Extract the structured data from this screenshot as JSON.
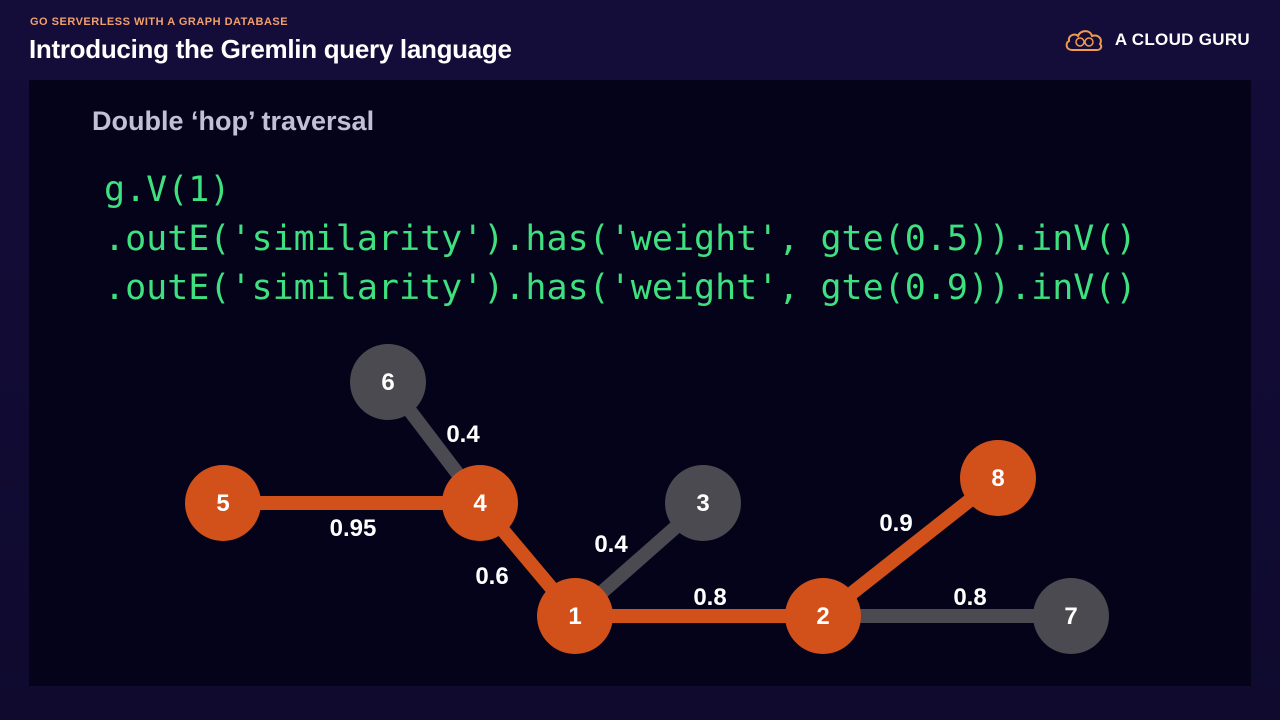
{
  "header": {
    "kicker": "GO SERVERLESS WITH A GRAPH DATABASE",
    "title": "Introducing the Gremlin query language",
    "brand": "A CLOUD GURU"
  },
  "slide": {
    "subtitle": "Double ‘hop’ traversal",
    "code_lines": [
      "g.V(1)",
      ".outE('similarity').has('weight', gte(0.5)).inV()",
      ".outE('similarity').has('weight', gte(0.9)).inV()"
    ]
  },
  "colors": {
    "highlight": "#d2501a",
    "inactive": "#4a4a50",
    "code": "#3fe07f"
  },
  "graph": {
    "nodes": [
      {
        "id": "6",
        "label": "6",
        "state": "inactive"
      },
      {
        "id": "5",
        "label": "5",
        "state": "highlight"
      },
      {
        "id": "4",
        "label": "4",
        "state": "highlight"
      },
      {
        "id": "3",
        "label": "3",
        "state": "inactive"
      },
      {
        "id": "1",
        "label": "1",
        "state": "highlight"
      },
      {
        "id": "2",
        "label": "2",
        "state": "highlight"
      },
      {
        "id": "8",
        "label": "8",
        "state": "highlight"
      },
      {
        "id": "7",
        "label": "7",
        "state": "inactive"
      }
    ],
    "edges": [
      {
        "from": "6",
        "to": "4",
        "weight": "0.4",
        "state": "inactive"
      },
      {
        "from": "5",
        "to": "4",
        "weight": "0.95",
        "state": "highlight"
      },
      {
        "from": "4",
        "to": "1",
        "weight": "0.6",
        "state": "highlight"
      },
      {
        "from": "1",
        "to": "3",
        "weight": "0.4",
        "state": "inactive"
      },
      {
        "from": "1",
        "to": "2",
        "weight": "0.8",
        "state": "highlight"
      },
      {
        "from": "2",
        "to": "8",
        "weight": "0.9",
        "state": "highlight"
      },
      {
        "from": "2",
        "to": "7",
        "weight": "0.8",
        "state": "inactive"
      }
    ]
  }
}
